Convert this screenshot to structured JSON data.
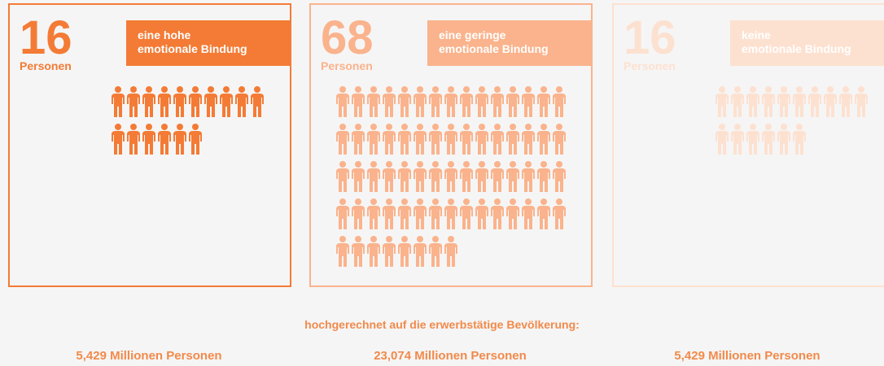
{
  "panels": [
    {
      "count": 16,
      "unit": "Personen",
      "label_lines": [
        "eine hohe",
        "emotionale Bindung"
      ],
      "color": "#f47b35"
    },
    {
      "count": 68,
      "unit": "Personen",
      "label_lines": [
        "eine geringe",
        "emotionale Bindung"
      ],
      "color": "#fab38c"
    },
    {
      "count": 16,
      "unit": "Personen",
      "label_lines": [
        "keine",
        "emotionale Bindung"
      ],
      "color": "#fde1d0"
    }
  ],
  "footer": {
    "title": "hochgerechnet auf die erwerbstätige Bevölkerung:",
    "totals": [
      "5,429 Millionen Personen",
      "23,074 Millionen Personen",
      "5,429 Millionen Personen"
    ]
  }
}
